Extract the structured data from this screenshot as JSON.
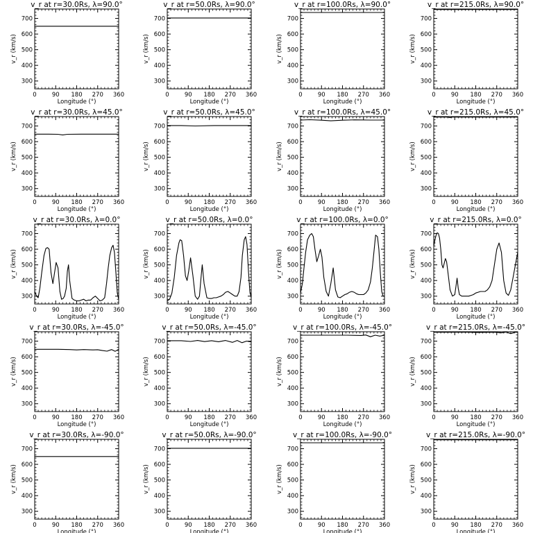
{
  "chart_data": [
    {
      "type": "line",
      "title": "v_r at r=30.0Rs, λ=90.0°",
      "xlabel": "Longitude (°)",
      "ylabel": "v_r (km/s)",
      "xlim": [
        0,
        360
      ],
      "ylim": [
        250,
        760
      ],
      "xticks": [
        "0",
        "90",
        "180",
        "270",
        "360"
      ],
      "yticks": [
        "300",
        "400",
        "500",
        "600",
        "700"
      ],
      "x": [
        0,
        360
      ],
      "y": [
        650,
        650
      ]
    },
    {
      "type": "line",
      "title": "v_r at r=50.0Rs, λ=90.0°",
      "xlabel": "Longitude (°)",
      "ylabel": "v_r (km/s)",
      "xlim": [
        0,
        360
      ],
      "ylim": [
        250,
        760
      ],
      "xticks": [
        "0",
        "90",
        "180",
        "270",
        "360"
      ],
      "yticks": [
        "300",
        "400",
        "500",
        "600",
        "700"
      ],
      "x": [
        0,
        360
      ],
      "y": [
        703,
        703
      ]
    },
    {
      "type": "line",
      "title": "v_r at r=100.0Rs, λ=90.0°",
      "xlabel": "Longitude (°)",
      "ylabel": "v_r (km/s)",
      "xlim": [
        0,
        360
      ],
      "ylim": [
        250,
        760
      ],
      "xticks": [
        "0",
        "90",
        "180",
        "270",
        "360"
      ],
      "yticks": [
        "300",
        "400",
        "500",
        "600",
        "700"
      ],
      "x": [
        0,
        360
      ],
      "y": [
        738,
        738
      ]
    },
    {
      "type": "line",
      "title": "v_r at r=215.0Rs, λ=90.0°",
      "xlabel": "Longitude (°)",
      "ylabel": "v_r (km/s)",
      "xlim": [
        0,
        360
      ],
      "ylim": [
        250,
        760
      ],
      "xticks": [
        "0",
        "90",
        "180",
        "270",
        "360"
      ],
      "yticks": [
        "300",
        "400",
        "500",
        "600",
        "700"
      ],
      "x": [
        0,
        360
      ],
      "y": [
        757,
        757
      ]
    },
    {
      "type": "line",
      "title": "v_r at r=30.0Rs, λ=45.0°",
      "xlabel": "Longitude (°)",
      "ylabel": "v_r (km/s)",
      "xlim": [
        0,
        360
      ],
      "ylim": [
        250,
        760
      ],
      "xticks": [
        "0",
        "90",
        "180",
        "270",
        "360"
      ],
      "yticks": [
        "300",
        "400",
        "500",
        "600",
        "700"
      ],
      "x": [
        0,
        60,
        100,
        120,
        140,
        200,
        300,
        360
      ],
      "y": [
        648,
        648,
        647,
        643,
        647,
        648,
        648,
        648
      ]
    },
    {
      "type": "line",
      "title": "v_r at r=50.0Rs, λ=45.0°",
      "xlabel": "Longitude (°)",
      "ylabel": "v_r (km/s)",
      "xlim": [
        0,
        360
      ],
      "ylim": [
        250,
        760
      ],
      "xticks": [
        "0",
        "90",
        "180",
        "270",
        "360"
      ],
      "yticks": [
        "300",
        "400",
        "500",
        "600",
        "700"
      ],
      "x": [
        0,
        60,
        120,
        200,
        300,
        360
      ],
      "y": [
        703,
        703,
        700,
        703,
        703,
        703
      ]
    },
    {
      "type": "line",
      "title": "v_r at r=100.0Rs, λ=45.0°",
      "xlabel": "Longitude (°)",
      "ylabel": "v_r (km/s)",
      "xlim": [
        0,
        360
      ],
      "ylim": [
        250,
        760
      ],
      "xticks": [
        "0",
        "90",
        "180",
        "270",
        "360"
      ],
      "yticks": [
        "300",
        "400",
        "500",
        "600",
        "700"
      ],
      "x": [
        0,
        40,
        90,
        130,
        180,
        230,
        300,
        360
      ],
      "y": [
        738,
        740,
        737,
        733,
        737,
        739,
        738,
        738
      ]
    },
    {
      "type": "line",
      "title": "v_r at r=215.0Rs, λ=45.0°",
      "xlabel": "Longitude (°)",
      "ylabel": "v_r (km/s)",
      "xlim": [
        0,
        360
      ],
      "ylim": [
        250,
        760
      ],
      "xticks": [
        "0",
        "90",
        "180",
        "270",
        "360"
      ],
      "yticks": [
        "300",
        "400",
        "500",
        "600",
        "700"
      ],
      "x": [
        0,
        60,
        70,
        80,
        180,
        360
      ],
      "y": [
        757,
        757,
        754,
        757,
        757,
        757
      ]
    },
    {
      "type": "line",
      "title": "v_r at r=30.0Rs, λ=0.0°",
      "xlabel": "Longitude (°)",
      "ylabel": "v_r (km/s)",
      "xlim": [
        0,
        360
      ],
      "ylim": [
        250,
        760
      ],
      "xticks": [
        "0",
        "90",
        "180",
        "270",
        "360"
      ],
      "yticks": [
        "300",
        "400",
        "500",
        "600",
        "700"
      ],
      "x": [
        0,
        8,
        15,
        22,
        30,
        40,
        48,
        55,
        62,
        70,
        78,
        85,
        92,
        100,
        108,
        115,
        122,
        128,
        135,
        140,
        145,
        150,
        160,
        170,
        180,
        190,
        200,
        210,
        220,
        230,
        240,
        250,
        260,
        270,
        280,
        290,
        300,
        308,
        315,
        322,
        330,
        336,
        342,
        348,
        354,
        360
      ],
      "y": [
        330,
        300,
        290,
        350,
        450,
        560,
        605,
        610,
        600,
        450,
        380,
        450,
        515,
        480,
        330,
        280,
        285,
        300,
        350,
        460,
        500,
        400,
        285,
        275,
        270,
        270,
        275,
        280,
        270,
        275,
        275,
        290,
        300,
        285,
        270,
        275,
        290,
        380,
        480,
        560,
        610,
        625,
        580,
        450,
        320,
        280
      ]
    },
    {
      "type": "line",
      "title": "v_r at r=50.0Rs, λ=0.0°",
      "xlabel": "Longitude (°)",
      "ylabel": "v_r (km/s)",
      "xlim": [
        0,
        360
      ],
      "ylim": [
        250,
        760
      ],
      "xticks": [
        "0",
        "90",
        "180",
        "270",
        "360"
      ],
      "yticks": [
        "300",
        "400",
        "500",
        "600",
        "700"
      ],
      "x": [
        0,
        10,
        20,
        30,
        40,
        50,
        55,
        62,
        70,
        78,
        85,
        92,
        100,
        110,
        120,
        130,
        138,
        145,
        150,
        158,
        170,
        180,
        190,
        200,
        210,
        220,
        230,
        240,
        250,
        260,
        270,
        280,
        290,
        300,
        308,
        316,
        322,
        330,
        336,
        342,
        348,
        354,
        360
      ],
      "y": [
        270,
        280,
        320,
        420,
        560,
        640,
        660,
        655,
        560,
        430,
        400,
        460,
        545,
        430,
        300,
        280,
        300,
        420,
        500,
        380,
        290,
        285,
        285,
        290,
        290,
        295,
        300,
        310,
        325,
        330,
        320,
        310,
        300,
        300,
        330,
        420,
        560,
        660,
        680,
        630,
        460,
        330,
        290
      ]
    },
    {
      "type": "line",
      "title": "v_r at r=100.0Rs, λ=0.0°",
      "xlabel": "Longitude (°)",
      "ylabel": "v_r (km/s)",
      "xlim": [
        0,
        360
      ],
      "ylim": [
        250,
        760
      ],
      "xticks": [
        "0",
        "90",
        "180",
        "270",
        "360"
      ],
      "yticks": [
        "300",
        "400",
        "500",
        "600",
        "700"
      ],
      "x": [
        0,
        8,
        15,
        22,
        30,
        40,
        48,
        55,
        62,
        70,
        78,
        85,
        92,
        100,
        110,
        120,
        130,
        140,
        150,
        160,
        170,
        180,
        190,
        200,
        210,
        220,
        230,
        240,
        250,
        260,
        270,
        280,
        290,
        300,
        308,
        316,
        322,
        330,
        336,
        342,
        348,
        354,
        360
      ],
      "y": [
        320,
        380,
        480,
        580,
        660,
        690,
        700,
        680,
        600,
        520,
        560,
        600,
        550,
        420,
        330,
        300,
        380,
        480,
        340,
        295,
        290,
        300,
        310,
        315,
        325,
        330,
        325,
        315,
        310,
        310,
        310,
        320,
        340,
        390,
        480,
        600,
        690,
        680,
        600,
        450,
        330,
        300,
        300
      ]
    },
    {
      "type": "line",
      "title": "v_r at r=215.0Rs, λ=0.0°",
      "xlabel": "Longitude (°)",
      "ylabel": "v_r (km/s)",
      "xlim": [
        0,
        360
      ],
      "ylim": [
        250,
        760
      ],
      "xticks": [
        "0",
        "90",
        "180",
        "270",
        "360"
      ],
      "yticks": [
        "300",
        "400",
        "500",
        "600",
        "700"
      ],
      "x": [
        0,
        5,
        10,
        15,
        20,
        25,
        30,
        35,
        40,
        45,
        50,
        55,
        60,
        70,
        80,
        90,
        95,
        100,
        105,
        110,
        120,
        130,
        140,
        150,
        160,
        170,
        180,
        190,
        200,
        210,
        220,
        230,
        240,
        250,
        260,
        270,
        280,
        290,
        300,
        310,
        320,
        330,
        340,
        350,
        360
      ],
      "y": [
        620,
        660,
        690,
        705,
        700,
        670,
        600,
        500,
        480,
        510,
        540,
        520,
        460,
        340,
        300,
        310,
        360,
        415,
        350,
        310,
        300,
        300,
        300,
        300,
        305,
        310,
        320,
        325,
        330,
        330,
        330,
        340,
        360,
        400,
        500,
        600,
        640,
        580,
        400,
        320,
        305,
        340,
        420,
        500,
        580
      ]
    },
    {
      "type": "line",
      "title": "v_r at r=30.0Rs, λ=-45.0°",
      "xlabel": "Longitude (°)",
      "ylabel": "v_r (km/s)",
      "xlim": [
        0,
        360
      ],
      "ylim": [
        250,
        760
      ],
      "xticks": [
        "0",
        "90",
        "180",
        "270",
        "360"
      ],
      "yticks": [
        "300",
        "400",
        "500",
        "600",
        "700"
      ],
      "x": [
        0,
        100,
        150,
        180,
        210,
        250,
        270,
        290,
        310,
        330,
        345,
        360
      ],
      "y": [
        648,
        648,
        646,
        644,
        646,
        644,
        645,
        640,
        636,
        646,
        635,
        648
      ]
    },
    {
      "type": "line",
      "title": "v_r at r=50.0Rs, λ=-45.0°",
      "xlabel": "Longitude (°)",
      "ylabel": "v_r (km/s)",
      "xlim": [
        0,
        360
      ],
      "ylim": [
        250,
        760
      ],
      "xticks": [
        "0",
        "90",
        "180",
        "270",
        "360"
      ],
      "yticks": [
        "300",
        "400",
        "500",
        "600",
        "700"
      ],
      "x": [
        0,
        60,
        100,
        130,
        160,
        190,
        220,
        250,
        280,
        300,
        320,
        340,
        360
      ],
      "y": [
        703,
        703,
        698,
        704,
        697,
        703,
        696,
        704,
        692,
        704,
        690,
        700,
        695
      ]
    },
    {
      "type": "line",
      "title": "v_r at r=100.0Rs, λ=-45.0°",
      "xlabel": "Longitude (°)",
      "ylabel": "v_r (km/s)",
      "xlim": [
        0,
        360
      ],
      "ylim": [
        250,
        760
      ],
      "xticks": [
        "0",
        "90",
        "180",
        "270",
        "360"
      ],
      "yticks": [
        "300",
        "400",
        "500",
        "600",
        "700"
      ],
      "x": [
        0,
        100,
        200,
        260,
        280,
        300,
        320,
        340,
        360
      ],
      "y": [
        738,
        738,
        738,
        736,
        739,
        728,
        738,
        732,
        738
      ]
    },
    {
      "type": "line",
      "title": "v_r at r=215.0Rs, λ=-45.0°",
      "xlabel": "Longitude (°)",
      "ylabel": "v_r (km/s)",
      "xlim": [
        0,
        360
      ],
      "ylim": [
        250,
        760
      ],
      "xticks": [
        "0",
        "90",
        "180",
        "270",
        "360"
      ],
      "yticks": [
        "300",
        "400",
        "500",
        "600",
        "700"
      ],
      "x": [
        0,
        150,
        180,
        260,
        290,
        310,
        330,
        350,
        360
      ],
      "y": [
        757,
        757,
        755,
        757,
        753,
        758,
        748,
        757,
        757
      ]
    },
    {
      "type": "line",
      "title": "v_r at r=30.0Rs, λ=-90.0°",
      "xlabel": "Longitude (°)",
      "ylabel": "v_r (km/s)",
      "xlim": [
        0,
        360
      ],
      "ylim": [
        250,
        760
      ],
      "xticks": [
        "0",
        "90",
        "180",
        "270",
        "360"
      ],
      "yticks": [
        "300",
        "400",
        "500",
        "600",
        "700"
      ],
      "x": [
        0,
        360
      ],
      "y": [
        650,
        650
      ]
    },
    {
      "type": "line",
      "title": "v_r at r=50.0Rs, λ=-90.0°",
      "xlabel": "Longitude (°)",
      "ylabel": "v_r (km/s)",
      "xlim": [
        0,
        360
      ],
      "ylim": [
        250,
        760
      ],
      "xticks": [
        "0",
        "90",
        "180",
        "270",
        "360"
      ],
      "yticks": [
        "300",
        "400",
        "500",
        "600",
        "700"
      ],
      "x": [
        0,
        360
      ],
      "y": [
        703,
        703
      ]
    },
    {
      "type": "line",
      "title": "v_r at r=100.0Rs, λ=-90.0°",
      "xlabel": "Longitude (°)",
      "ylabel": "v_r (km/s)",
      "xlim": [
        0,
        360
      ],
      "ylim": [
        250,
        760
      ],
      "xticks": [
        "0",
        "90",
        "180",
        "270",
        "360"
      ],
      "yticks": [
        "300",
        "400",
        "500",
        "600",
        "700"
      ],
      "x": [
        0,
        360
      ],
      "y": [
        738,
        738
      ]
    },
    {
      "type": "line",
      "title": "v_r at r=215.0Rs, λ=-90.0°",
      "xlabel": "Longitude (°)",
      "ylabel": "v_r (km/s)",
      "xlim": [
        0,
        360
      ],
      "ylim": [
        250,
        760
      ],
      "xticks": [
        "0",
        "90",
        "180",
        "270",
        "360"
      ],
      "yticks": [
        "300",
        "400",
        "500",
        "600",
        "700"
      ],
      "x": [
        0,
        360
      ],
      "y": [
        757,
        757
      ]
    }
  ]
}
